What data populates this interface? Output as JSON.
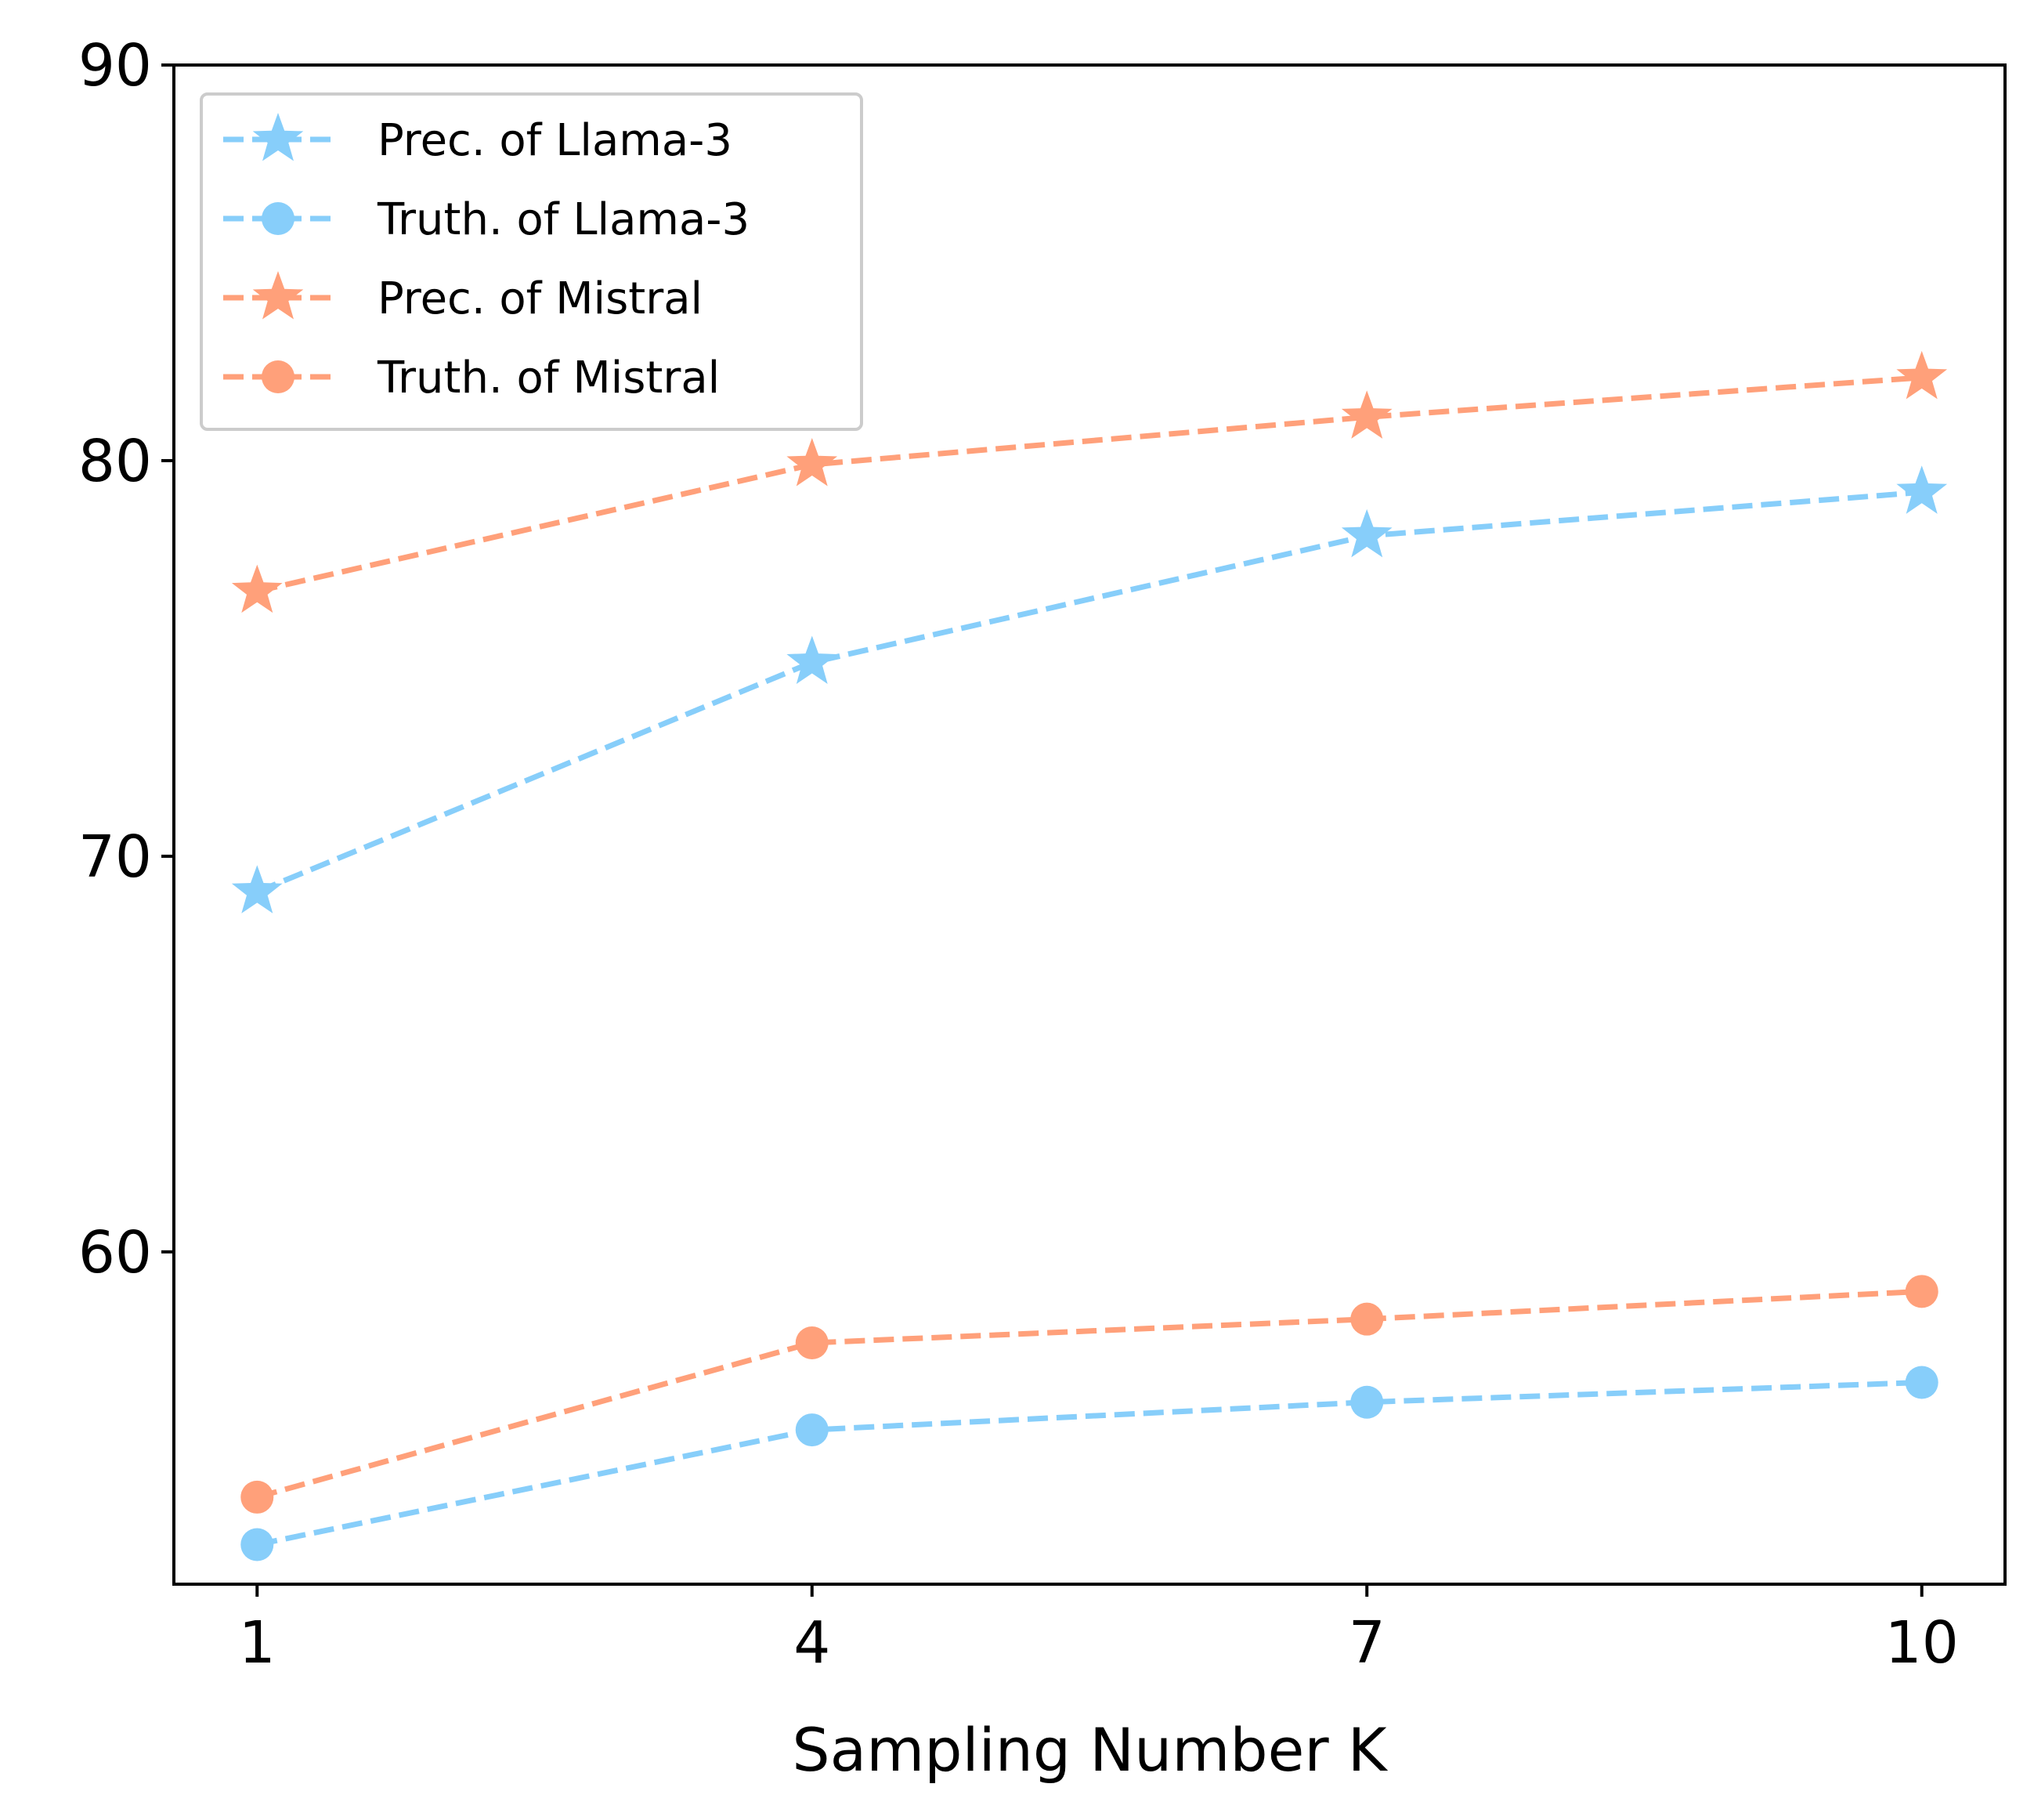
{
  "chart_data": {
    "type": "line",
    "title": "",
    "xlabel": "Sampling Number K",
    "ylabel": "",
    "x": [
      1,
      4,
      7,
      10
    ],
    "x_tick_labels": [
      "1",
      "4",
      "7",
      "10"
    ],
    "y_ticks": [
      60,
      70,
      80,
      90
    ],
    "y_tick_labels": [
      "60",
      "70",
      "80",
      "90"
    ],
    "xlim": [
      0.55,
      10.45
    ],
    "ylim": [
      51.6,
      90
    ],
    "grid": false,
    "legend_position": "top-left",
    "series": [
      {
        "name": "Prec. of Llama-3",
        "values": [
          69.1,
          74.9,
          78.1,
          79.2
        ],
        "color": "#87CEFA",
        "marker": "star",
        "line_style": "dashed"
      },
      {
        "name": "Truth. of Llama-3",
        "values": [
          52.6,
          55.5,
          56.2,
          56.7
        ],
        "color": "#87CEFA",
        "marker": "circle",
        "line_style": "dashed"
      },
      {
        "name": "Prec. of Mistral",
        "values": [
          76.7,
          79.9,
          81.1,
          82.1
        ],
        "color": "#FFA07A",
        "marker": "star",
        "line_style": "dashed"
      },
      {
        "name": "Truth. of Mistral",
        "values": [
          53.8,
          57.7,
          58.3,
          59.0
        ],
        "color": "#FFA07A",
        "marker": "circle",
        "line_style": "dashed"
      }
    ]
  }
}
